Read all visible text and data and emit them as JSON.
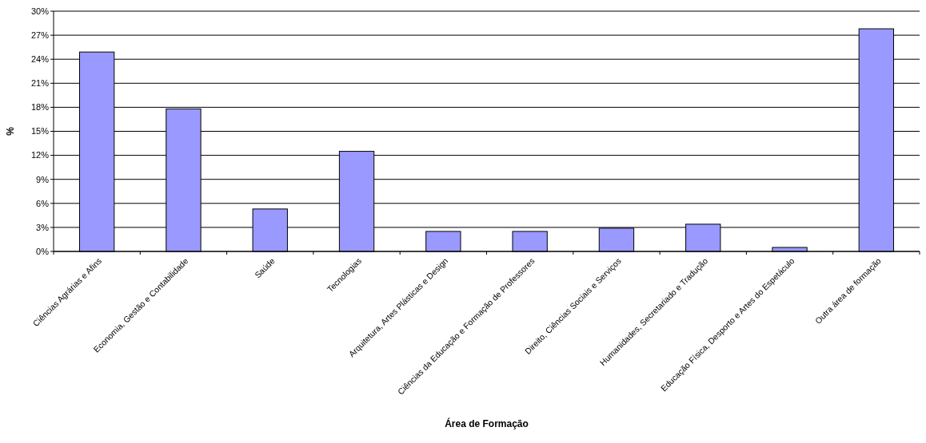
{
  "chart_data": {
    "type": "bar",
    "xlabel": "Área de Formação",
    "ylabel": "%",
    "categories": [
      "Ciências Agrárias e Afins",
      "Economia, Gestão e Contabilidade",
      "Saúde",
      "Tecnologias",
      "Arquitetura, Artes Plásticas e Design",
      "Ciências da Educação e Formação de Professores",
      "Direito, Ciências Sociais e Serviços",
      "Humanidades, Secretariado e Tradução",
      "Educação Física, Desporto e Artes do Espetáculo",
      "Outra área de formação"
    ],
    "values": [
      24.9,
      17.8,
      5.3,
      12.5,
      2.5,
      2.5,
      2.9,
      3.4,
      0.5,
      27.8
    ],
    "color": "#9999ff",
    "ylim": [
      0,
      30
    ],
    "yticks": [
      {
        "value": 0,
        "label": "0%"
      },
      {
        "value": 3,
        "label": "3%"
      },
      {
        "value": 6,
        "label": "6%"
      },
      {
        "value": 9,
        "label": "9%"
      },
      {
        "value": 12,
        "label": "12%"
      },
      {
        "value": 15,
        "label": "15%"
      },
      {
        "value": 18,
        "label": "18%"
      },
      {
        "value": 21,
        "label": "21%"
      },
      {
        "value": 24,
        "label": "24%"
      },
      {
        "value": 27,
        "label": "27%"
      },
      {
        "value": 30,
        "label": "30%"
      }
    ],
    "grid": "y"
  }
}
